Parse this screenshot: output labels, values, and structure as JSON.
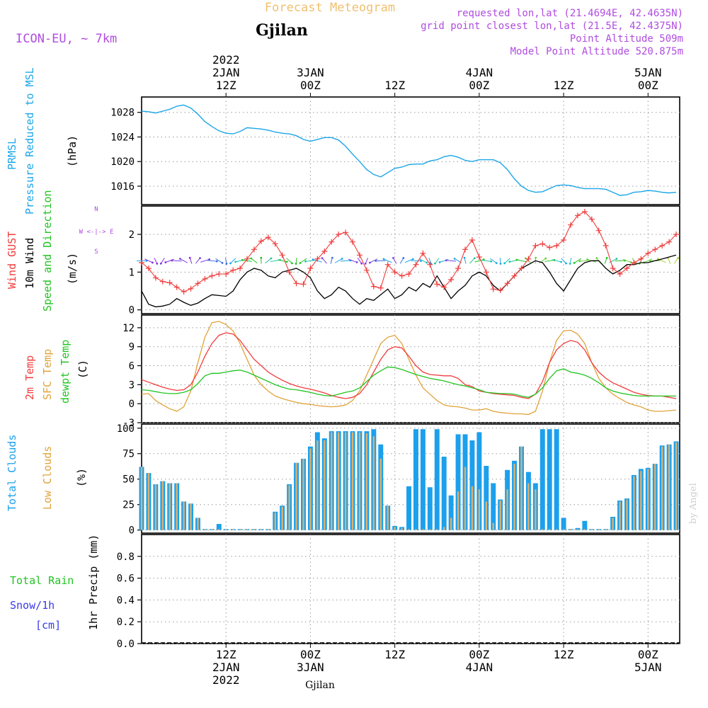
{
  "header": {
    "title": "Forecast Meteogram",
    "location": "Gjilan",
    "model": "ICON-EU, ~ 7km",
    "requested": "requested lon,lat (21.4694E, 42.4635N)",
    "closest": "grid point closest lon,lat (21.5E, 42.4375N)",
    "altitude": "Point Altitude 509m",
    "model_altitude": "Model Point Altitude 520.875m",
    "footer_location": "Gjilan",
    "watermark": "by Angel"
  },
  "time_axis": {
    "top": [
      {
        "h": 12,
        "lines": [
          "2022",
          "2JAN",
          "12Z"
        ]
      },
      {
        "h": 24,
        "lines": [
          "3JAN",
          "00Z"
        ]
      },
      {
        "h": 36,
        "lines": [
          "12Z"
        ]
      },
      {
        "h": 48,
        "lines": [
          "4JAN",
          "00Z"
        ]
      },
      {
        "h": 60,
        "lines": [
          "12Z"
        ]
      },
      {
        "h": 72,
        "lines": [
          "5JAN",
          "00Z"
        ]
      }
    ],
    "bottom": [
      {
        "h": 12,
        "lines": [
          "12Z",
          "2JAN",
          "2022"
        ]
      },
      {
        "h": 24,
        "lines": [
          "00Z",
          "3JAN"
        ]
      },
      {
        "h": 36,
        "lines": [
          "12Z"
        ]
      },
      {
        "h": 48,
        "lines": [
          "00Z",
          "4JAN"
        ]
      },
      {
        "h": 60,
        "lines": [
          "12Z"
        ]
      },
      {
        "h": 72,
        "lines": [
          "00Z",
          "5JAN"
        ]
      }
    ]
  },
  "panels": {
    "pressure": {
      "labels": [
        "PRMSL",
        "Pressure Reduced to MSL",
        "(hPa)"
      ]
    },
    "wind": {
      "labels": [
        "Wind GUST",
        "10m Wind",
        "Speed and Direction",
        "(m/s)"
      ],
      "compass": [
        "N",
        "W <-|-> E",
        "S"
      ]
    },
    "temp": {
      "labels": [
        "2m Temp",
        "SFC Temp",
        "dewpt Temp",
        "(C)"
      ]
    },
    "clouds": {
      "labels": [
        "Total Clouds",
        "Low Clouds",
        "(%)"
      ]
    },
    "precip": {
      "labels": [
        "Total Rain",
        "Snow/1h",
        "[cm]",
        "1hr Precip (mm)"
      ]
    }
  },
  "colors": {
    "pressure": "#1ca6e8",
    "gust": "#f03c3c",
    "wind10m": "#000000",
    "speed_dir": "#22c422",
    "temp2m": "#f03c3c",
    "sfc": "#e0a33a",
    "dewpt": "#22c422",
    "total_clouds": "#1ca0ec",
    "low_clouds": "#d9b070",
    "snow": "#3a3ae8",
    "header_purple": "#b04ce0",
    "title_orange": "#f0c070"
  },
  "chart_data": [
    {
      "type": "line",
      "name": "pressure",
      "ylabel": "Pressure Reduced to MSL (hPa)",
      "ylim": [
        1013,
        1030.5
      ],
      "yticks": [
        1016,
        1020,
        1024,
        1028
      ],
      "x": [
        0,
        1,
        2,
        3,
        4,
        5,
        6,
        7,
        8,
        9,
        10,
        11,
        12,
        13,
        14,
        15,
        16,
        17,
        18,
        19,
        20,
        21,
        22,
        23,
        24,
        25,
        26,
        27,
        28,
        29,
        30,
        31,
        32,
        33,
        34,
        35,
        36,
        37,
        38,
        39,
        40,
        41,
        42,
        43,
        44,
        45,
        46,
        47,
        48,
        49,
        50,
        51,
        52,
        53,
        54,
        55,
        56,
        57,
        58,
        59,
        60,
        61,
        62,
        63,
        64,
        65,
        66,
        67,
        68,
        69,
        70,
        71,
        72,
        73,
        74,
        75,
        76
      ],
      "series": [
        {
          "values": [
            1028.2,
            1028.1,
            1027.9,
            1028.2,
            1028.5,
            1029.0,
            1029.2,
            1028.7,
            1027.7,
            1026.5,
            1025.7,
            1025.0,
            1024.6,
            1024.5,
            1024.9,
            1025.5,
            1025.4,
            1025.3,
            1025.1,
            1024.8,
            1024.6,
            1024.5,
            1024.2,
            1023.6,
            1023.3,
            1023.6,
            1023.9,
            1023.9,
            1023.5,
            1022.5,
            1021.2,
            1020.0,
            1018.7,
            1017.9,
            1017.5,
            1018.2,
            1018.9,
            1019.1,
            1019.5,
            1019.6,
            1019.6,
            1020.1,
            1020.3,
            1020.8,
            1021.0,
            1020.7,
            1020.2,
            1020.0,
            1020.3,
            1020.3,
            1020.3,
            1019.8,
            1018.7,
            1017.2,
            1016.0,
            1015.3,
            1015.0,
            1015.1,
            1015.6,
            1016.1,
            1016.2,
            1016.1,
            1015.8,
            1015.6,
            1015.6,
            1015.6,
            1015.5,
            1015.0,
            1014.5,
            1014.6,
            1015.0,
            1015.1,
            1015.3,
            1015.2,
            1015.0,
            1014.9,
            1015.0
          ]
        }
      ]
    },
    {
      "type": "line",
      "name": "wind",
      "ylabel": "(m/s)",
      "ylim": [
        -0.1,
        2.75
      ],
      "yticks": [
        0,
        1,
        2
      ],
      "x": [
        0,
        1,
        2,
        3,
        4,
        5,
        6,
        7,
        8,
        9,
        10,
        11,
        12,
        13,
        14,
        15,
        16,
        17,
        18,
        19,
        20,
        21,
        22,
        23,
        24,
        25,
        26,
        27,
        28,
        29,
        30,
        31,
        32,
        33,
        34,
        35,
        36,
        37,
        38,
        39,
        40,
        41,
        42,
        43,
        44,
        45,
        46,
        47,
        48,
        49,
        50,
        51,
        52,
        53,
        54,
        55,
        56,
        57,
        58,
        59,
        60,
        61,
        62,
        63,
        64,
        65,
        66,
        67,
        68,
        69,
        70,
        71,
        72,
        73,
        74,
        75,
        76
      ],
      "series": [
        {
          "name": "Wind GUST",
          "values": [
            1.25,
            1.1,
            0.85,
            0.75,
            0.72,
            0.6,
            0.48,
            0.56,
            0.7,
            0.82,
            0.9,
            0.95,
            0.95,
            1.05,
            1.1,
            1.35,
            1.6,
            1.82,
            1.92,
            1.75,
            1.45,
            1.0,
            0.7,
            0.68,
            1.1,
            1.35,
            1.55,
            1.8,
            2.0,
            2.05,
            1.8,
            1.45,
            1.05,
            0.62,
            0.58,
            1.2,
            1.0,
            0.9,
            0.95,
            1.2,
            1.5,
            1.2,
            0.68,
            0.6,
            0.8,
            1.1,
            1.6,
            1.85,
            1.4,
            1.0,
            0.55,
            0.52,
            0.7,
            0.9,
            1.1,
            1.35,
            1.7,
            1.75,
            1.65,
            1.7,
            1.85,
            2.25,
            2.5,
            2.6,
            2.4,
            2.1,
            1.7,
            1.1,
            0.95,
            1.1,
            1.25,
            1.35,
            1.5,
            1.6,
            1.7,
            1.8,
            2.0
          ]
        },
        {
          "name": "10m Wind",
          "values": [
            0.5,
            0.15,
            0.08,
            0.1,
            0.15,
            0.3,
            0.2,
            0.12,
            0.18,
            0.3,
            0.4,
            0.38,
            0.36,
            0.5,
            0.8,
            1.0,
            1.1,
            1.05,
            0.9,
            0.85,
            1.0,
            1.05,
            1.1,
            1.0,
            0.85,
            0.5,
            0.3,
            0.4,
            0.6,
            0.5,
            0.3,
            0.15,
            0.3,
            0.25,
            0.4,
            0.55,
            0.3,
            0.4,
            0.6,
            0.5,
            0.7,
            0.6,
            0.9,
            0.6,
            0.3,
            0.5,
            0.65,
            0.9,
            1.0,
            0.9,
            0.65,
            0.5,
            0.7,
            0.9,
            1.1,
            1.2,
            1.3,
            1.25,
            1.0,
            0.7,
            0.5,
            0.8,
            1.1,
            1.25,
            1.3,
            1.3,
            1.1,
            0.95,
            1.05,
            1.2,
            1.2,
            1.25,
            1.25,
            1.3,
            1.35,
            1.4,
            1.45
          ]
        }
      ]
    },
    {
      "type": "line",
      "name": "temperature",
      "ylabel": "(C)",
      "ylim": [
        -3,
        14
      ],
      "yticks": [
        -3,
        0,
        3,
        6,
        9,
        12
      ],
      "x": [
        0,
        1,
        2,
        3,
        4,
        5,
        6,
        7,
        8,
        9,
        10,
        11,
        12,
        13,
        14,
        15,
        16,
        17,
        18,
        19,
        20,
        21,
        22,
        23,
        24,
        25,
        26,
        27,
        28,
        29,
        30,
        31,
        32,
        33,
        34,
        35,
        36,
        37,
        38,
        39,
        40,
        41,
        42,
        43,
        44,
        45,
        46,
        47,
        48,
        49,
        50,
        51,
        52,
        53,
        54,
        55,
        56,
        57,
        58,
        59,
        60,
        61,
        62,
        63,
        64,
        65,
        66,
        67,
        68,
        69,
        70,
        71,
        72,
        73,
        74,
        75,
        76
      ],
      "series": [
        {
          "name": "2m Temp",
          "values": [
            3.8,
            3.4,
            3.0,
            2.6,
            2.3,
            2.1,
            2.2,
            3.0,
            5.0,
            7.5,
            9.5,
            10.8,
            11.2,
            11.0,
            10.0,
            8.5,
            7.0,
            6.0,
            5.0,
            4.3,
            3.7,
            3.2,
            2.8,
            2.5,
            2.3,
            2.0,
            1.7,
            1.3,
            1.0,
            0.8,
            1.0,
            1.6,
            3.0,
            5.0,
            7.0,
            8.5,
            9.0,
            8.8,
            7.5,
            6.0,
            5.0,
            4.6,
            4.5,
            4.4,
            4.4,
            4.0,
            3.0,
            2.7,
            2.0,
            1.8,
            1.6,
            1.5,
            1.4,
            1.3,
            1.0,
            0.8,
            1.5,
            3.5,
            6.5,
            8.5,
            9.5,
            10.0,
            9.7,
            8.5,
            6.5,
            5.0,
            4.0,
            3.3,
            2.8,
            2.3,
            1.8,
            1.5,
            1.3,
            1.2,
            1.2,
            1.0,
            0.8
          ]
        },
        {
          "name": "SFC Temp",
          "values": [
            1.5,
            1.6,
            0.5,
            -0.2,
            -0.8,
            -1.2,
            -0.5,
            2.0,
            6.5,
            10.5,
            12.8,
            13.0,
            12.5,
            11.5,
            9.5,
            7.0,
            4.5,
            3.0,
            2.0,
            1.2,
            0.8,
            0.5,
            0.2,
            0.0,
            -0.1,
            -0.3,
            -0.4,
            -0.5,
            -0.4,
            -0.2,
            0.5,
            2.0,
            4.5,
            7.0,
            9.5,
            10.5,
            10.8,
            9.5,
            7.0,
            4.5,
            2.5,
            1.5,
            0.5,
            -0.2,
            -0.4,
            -0.5,
            -0.7,
            -1.0,
            -1.0,
            -0.8,
            -1.2,
            -1.4,
            -1.5,
            -1.6,
            -1.6,
            -1.7,
            -1.2,
            2.0,
            6.5,
            10.0,
            11.5,
            11.6,
            11.0,
            9.5,
            6.5,
            4.0,
            2.5,
            1.5,
            0.8,
            0.2,
            -0.2,
            -0.5,
            -1.0,
            -1.2,
            -1.2,
            -1.1,
            -1.0
          ]
        },
        {
          "name": "dewpt Temp",
          "values": [
            2.2,
            2.1,
            1.9,
            1.7,
            1.6,
            1.6,
            1.8,
            2.2,
            3.2,
            4.4,
            4.8,
            4.8,
            5.0,
            5.2,
            5.3,
            5.0,
            4.5,
            4.0,
            3.5,
            3.0,
            2.6,
            2.3,
            2.2,
            2.0,
            1.8,
            1.5,
            1.3,
            1.2,
            1.5,
            1.8,
            2.0,
            2.5,
            3.5,
            4.5,
            5.2,
            5.8,
            5.7,
            5.4,
            5.0,
            4.6,
            4.3,
            4.0,
            3.8,
            3.6,
            3.3,
            3.0,
            2.8,
            2.5,
            2.2,
            1.8,
            1.7,
            1.6,
            1.6,
            1.5,
            1.2,
            1.0,
            1.5,
            2.5,
            4.0,
            5.2,
            5.5,
            5.0,
            4.8,
            4.5,
            4.0,
            3.3,
            2.5,
            2.0,
            1.7,
            1.5,
            1.3,
            1.2,
            1.2,
            1.2,
            1.2,
            1.2,
            1.2
          ]
        }
      ]
    },
    {
      "type": "bar",
      "name": "clouds",
      "ylabel": "(%)",
      "ylim": [
        -3,
        104
      ],
      "yticks": [
        0,
        25,
        50,
        75,
        100
      ],
      "x": [
        0,
        1,
        2,
        3,
        4,
        5,
        6,
        7,
        8,
        9,
        10,
        11,
        12,
        13,
        14,
        15,
        16,
        17,
        18,
        19,
        20,
        21,
        22,
        23,
        24,
        25,
        26,
        27,
        28,
        29,
        30,
        31,
        32,
        33,
        34,
        35,
        36,
        37,
        38,
        39,
        40,
        41,
        42,
        43,
        44,
        45,
        46,
        47,
        48,
        49,
        50,
        51,
        52,
        53,
        54,
        55,
        56,
        57,
        58,
        59,
        60,
        61,
        62,
        63,
        64,
        65,
        66,
        67,
        68,
        69,
        70,
        71,
        72,
        73,
        74,
        75,
        76
      ],
      "series": [
        {
          "name": "Total Clouds",
          "values": [
            62,
            56,
            45,
            48,
            46,
            46,
            28,
            26,
            12,
            1,
            1,
            6,
            1,
            1,
            1,
            1,
            1,
            1,
            1,
            18,
            24,
            45,
            66,
            70,
            82,
            96,
            90,
            97,
            97,
            97,
            97,
            97,
            97,
            99,
            84,
            24,
            4,
            3,
            43,
            99,
            99,
            42,
            99,
            72,
            34,
            94,
            94,
            88,
            96,
            63,
            46,
            30,
            59,
            68,
            82,
            57,
            46,
            99,
            99,
            99,
            12,
            1,
            2,
            9,
            1,
            1,
            1,
            13,
            29,
            31,
            54,
            60,
            61,
            65,
            83,
            84,
            87
          ]
        },
        {
          "name": "Low Clouds",
          "values": [
            62,
            56,
            45,
            48,
            46,
            46,
            28,
            26,
            12,
            1,
            1,
            1,
            1,
            1,
            1,
            1,
            1,
            1,
            1,
            17,
            23,
            44,
            66,
            70,
            80,
            88,
            88,
            96,
            96,
            96,
            96,
            96,
            95,
            92,
            70,
            24,
            3,
            2,
            1,
            1,
            1,
            1,
            1,
            3,
            12,
            38,
            62,
            43,
            40,
            28,
            7,
            29,
            40,
            65,
            82,
            46,
            40,
            1,
            1,
            1,
            1,
            1,
            1,
            1,
            1,
            1,
            1,
            12,
            28,
            30,
            53,
            58,
            60,
            65,
            82,
            84,
            86
          ]
        }
      ]
    },
    {
      "type": "bar",
      "name": "precip",
      "ylabel": "1hr Precip (mm)",
      "ylim": [
        0,
        1.0
      ],
      "yticks": [
        0,
        0.2,
        0.4,
        0.6,
        0.8
      ],
      "series": [
        {
          "name": "Total Rain",
          "values": []
        },
        {
          "name": "Snow/1h",
          "values": []
        }
      ]
    }
  ]
}
